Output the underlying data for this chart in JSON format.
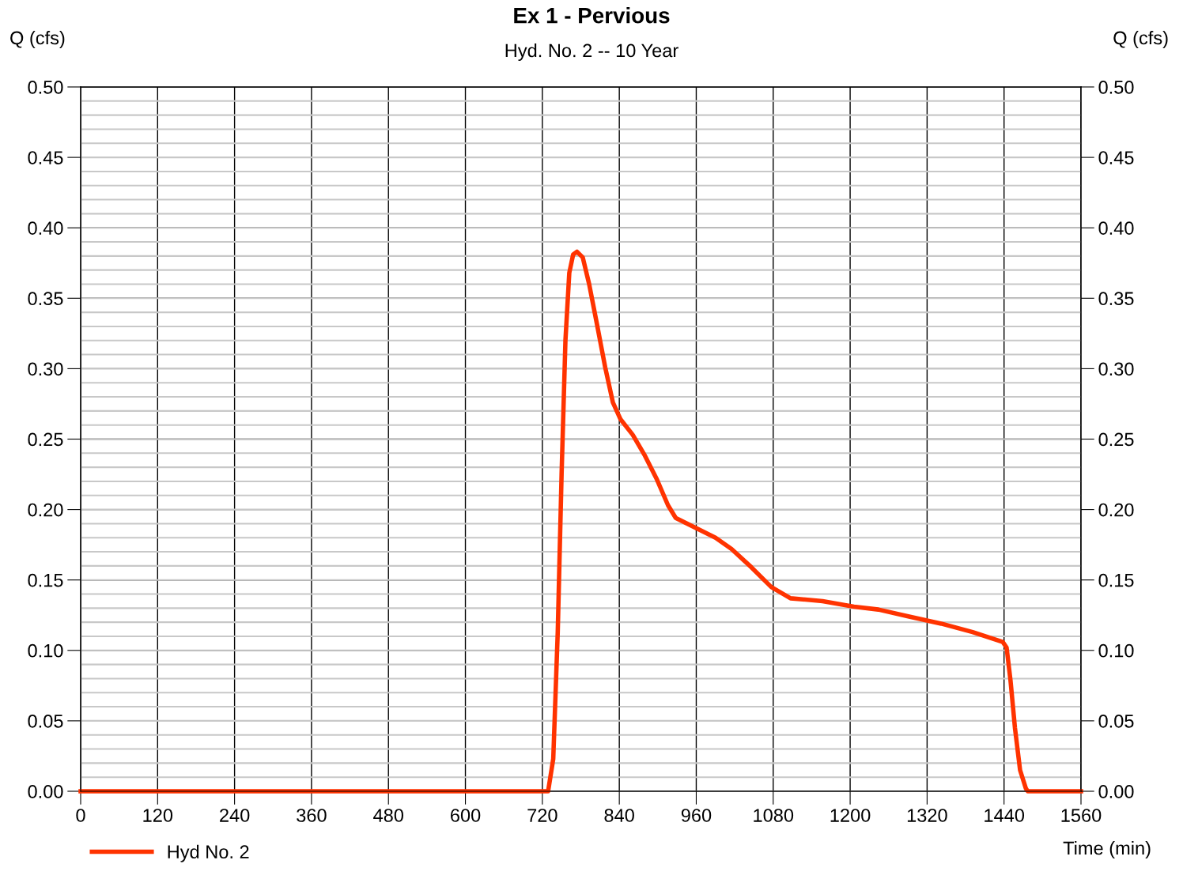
{
  "chart_data": {
    "type": "line",
    "title": "Ex 1 - Pervious",
    "subtitle": "Hyd. No. 2 -- 10 Year",
    "xlabel": "Time (min)",
    "ylabel": "Q (cfs)",
    "y2label": "Q (cfs)",
    "xlim": [
      0,
      1560
    ],
    "xticks": [
      0,
      120,
      240,
      360,
      480,
      600,
      720,
      840,
      960,
      1080,
      1200,
      1320,
      1440,
      1560
    ],
    "ylim": [
      0,
      0.5
    ],
    "yticks": [
      {
        "value": 0,
        "label": "0.00"
      },
      {
        "value": 0.05,
        "label": "0.05"
      },
      {
        "value": 0.1,
        "label": "0.10"
      },
      {
        "value": 0.15,
        "label": "0.15"
      },
      {
        "value": 0.2,
        "label": "0.20"
      },
      {
        "value": 0.25,
        "label": "0.25"
      },
      {
        "value": 0.3,
        "label": "0.30"
      },
      {
        "value": 0.35,
        "label": "0.35"
      },
      {
        "value": 0.4,
        "label": "0.40"
      },
      {
        "value": 0.45,
        "label": "0.45"
      },
      {
        "value": 0.5,
        "label": "0.50"
      }
    ],
    "y2lim": [
      0,
      0.5
    ],
    "y2ticks": [
      {
        "value": 0,
        "label": "0.00"
      },
      {
        "value": 0.05,
        "label": "0.05"
      },
      {
        "value": 0.1,
        "label": "0.10"
      },
      {
        "value": 0.15,
        "label": "0.15"
      },
      {
        "value": 0.2,
        "label": "0.20"
      },
      {
        "value": 0.25,
        "label": "0.25"
      },
      {
        "value": 0.3,
        "label": "0.30"
      },
      {
        "value": 0.35,
        "label": "0.35"
      },
      {
        "value": 0.4,
        "label": "0.40"
      },
      {
        "value": 0.45,
        "label": "0.45"
      },
      {
        "value": 0.5,
        "label": "0.50"
      }
    ],
    "grid": true,
    "legend": "bottom left",
    "marker": "none",
    "line_style": "solid",
    "series": [
      {
        "name": "Hyd No. 2",
        "color": "#ff3300",
        "x": [
          0,
          729,
          737,
          744,
          750,
          756,
          762,
          768,
          774,
          783,
          793,
          805,
          818,
          830,
          842,
          861,
          879,
          898,
          916,
          928,
          959,
          990,
          1015,
          1046,
          1077,
          1107,
          1157,
          1206,
          1244,
          1292,
          1342,
          1391,
          1438,
          1444,
          1450,
          1457,
          1465,
          1474,
          1477,
          1560
        ],
        "values": [
          0,
          0,
          0.023,
          0.113,
          0.225,
          0.32,
          0.368,
          0.381,
          0.383,
          0.379,
          0.36,
          0.332,
          0.301,
          0.276,
          0.264,
          0.253,
          0.239,
          0.222,
          0.203,
          0.194,
          0.187,
          0.18,
          0.172,
          0.159,
          0.145,
          0.137,
          0.135,
          0.131,
          0.129,
          0.124,
          0.119,
          0.113,
          0.106,
          0.102,
          0.079,
          0.045,
          0.015,
          0.002,
          0,
          0
        ]
      }
    ]
  }
}
